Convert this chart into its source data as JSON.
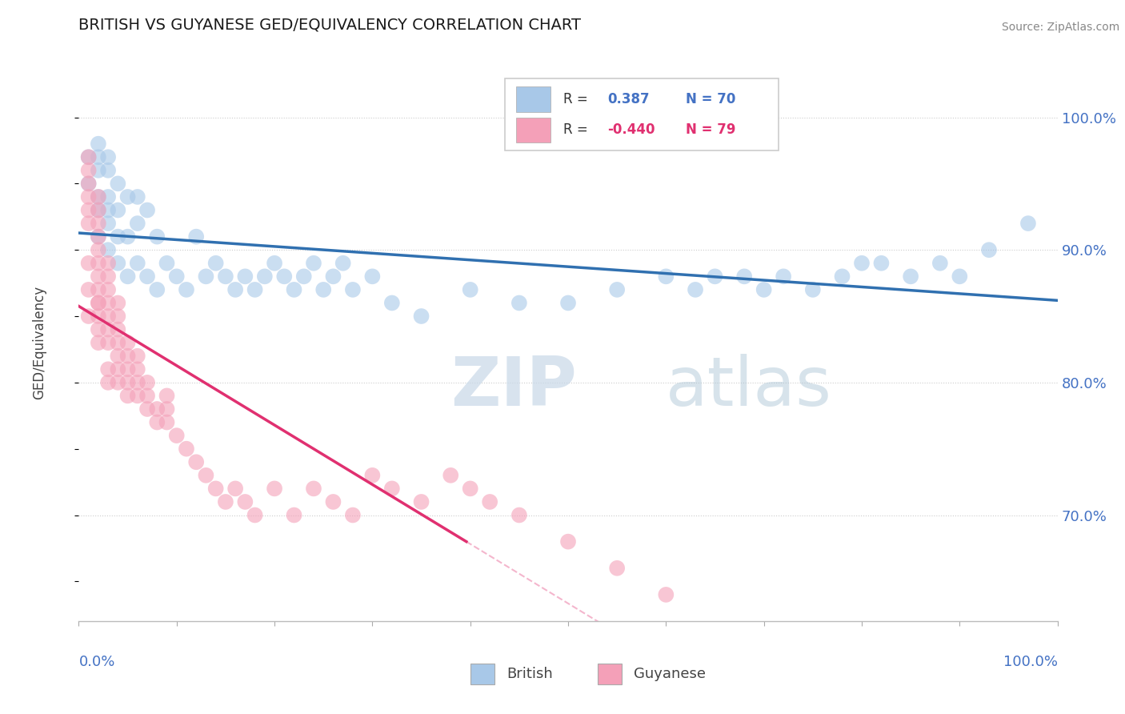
{
  "title": "BRITISH VS GUYANESE GED/EQUIVALENCY CORRELATION CHART",
  "source": "Source: ZipAtlas.com",
  "ylabel": "GED/Equivalency",
  "yticks": [
    0.7,
    0.8,
    0.9,
    1.0
  ],
  "ytick_labels": [
    "70.0%",
    "80.0%",
    "90.0%",
    "100.0%"
  ],
  "watermark_zip": "ZIP",
  "watermark_atlas": "atlas",
  "legend_r_label": "R = ",
  "legend_british_r_val": "0.387",
  "legend_british_n": "N = 70",
  "legend_guyanese_r_val": "-0.440",
  "legend_guyanese_n": "N = 79",
  "blue_scatter_color": "#a8c8e8",
  "pink_scatter_color": "#f4a0b8",
  "blue_line_color": "#3070b0",
  "pink_line_color": "#e03070",
  "axis_color": "#4472c4",
  "title_color": "#1a1a1a",
  "british_x": [
    0.01,
    0.01,
    0.02,
    0.02,
    0.02,
    0.02,
    0.02,
    0.02,
    0.03,
    0.03,
    0.03,
    0.03,
    0.03,
    0.03,
    0.04,
    0.04,
    0.04,
    0.04,
    0.05,
    0.05,
    0.05,
    0.06,
    0.06,
    0.06,
    0.07,
    0.07,
    0.08,
    0.08,
    0.09,
    0.1,
    0.11,
    0.12,
    0.13,
    0.14,
    0.15,
    0.16,
    0.17,
    0.18,
    0.19,
    0.2,
    0.21,
    0.22,
    0.23,
    0.24,
    0.25,
    0.26,
    0.27,
    0.28,
    0.3,
    0.32,
    0.35,
    0.4,
    0.45,
    0.5,
    0.55,
    0.6,
    0.63,
    0.65,
    0.68,
    0.7,
    0.72,
    0.75,
    0.78,
    0.8,
    0.82,
    0.85,
    0.88,
    0.9,
    0.93,
    0.97
  ],
  "british_y": [
    0.95,
    0.97,
    0.91,
    0.93,
    0.94,
    0.96,
    0.97,
    0.98,
    0.9,
    0.92,
    0.93,
    0.94,
    0.96,
    0.97,
    0.89,
    0.91,
    0.93,
    0.95,
    0.88,
    0.91,
    0.94,
    0.89,
    0.92,
    0.94,
    0.88,
    0.93,
    0.87,
    0.91,
    0.89,
    0.88,
    0.87,
    0.91,
    0.88,
    0.89,
    0.88,
    0.87,
    0.88,
    0.87,
    0.88,
    0.89,
    0.88,
    0.87,
    0.88,
    0.89,
    0.87,
    0.88,
    0.89,
    0.87,
    0.88,
    0.86,
    0.85,
    0.87,
    0.86,
    0.86,
    0.87,
    0.88,
    0.87,
    0.88,
    0.88,
    0.87,
    0.88,
    0.87,
    0.88,
    0.89,
    0.89,
    0.88,
    0.89,
    0.88,
    0.9,
    0.92
  ],
  "guyanese_x": [
    0.01,
    0.01,
    0.01,
    0.01,
    0.01,
    0.01,
    0.01,
    0.01,
    0.01,
    0.02,
    0.02,
    0.02,
    0.02,
    0.02,
    0.02,
    0.02,
    0.02,
    0.02,
    0.02,
    0.02,
    0.02,
    0.02,
    0.03,
    0.03,
    0.03,
    0.03,
    0.03,
    0.03,
    0.03,
    0.03,
    0.03,
    0.04,
    0.04,
    0.04,
    0.04,
    0.04,
    0.04,
    0.04,
    0.05,
    0.05,
    0.05,
    0.05,
    0.05,
    0.06,
    0.06,
    0.06,
    0.06,
    0.07,
    0.07,
    0.07,
    0.08,
    0.08,
    0.09,
    0.09,
    0.09,
    0.1,
    0.11,
    0.12,
    0.13,
    0.14,
    0.15,
    0.16,
    0.17,
    0.18,
    0.2,
    0.22,
    0.24,
    0.26,
    0.28,
    0.3,
    0.32,
    0.35,
    0.38,
    0.4,
    0.42,
    0.45,
    0.5,
    0.55,
    0.6
  ],
  "guyanese_y": [
    0.92,
    0.93,
    0.94,
    0.95,
    0.96,
    0.97,
    0.85,
    0.87,
    0.89,
    0.86,
    0.87,
    0.88,
    0.89,
    0.9,
    0.91,
    0.92,
    0.93,
    0.94,
    0.83,
    0.84,
    0.85,
    0.86,
    0.83,
    0.84,
    0.85,
    0.86,
    0.87,
    0.88,
    0.89,
    0.8,
    0.81,
    0.82,
    0.83,
    0.84,
    0.85,
    0.86,
    0.8,
    0.81,
    0.79,
    0.8,
    0.81,
    0.82,
    0.83,
    0.79,
    0.8,
    0.81,
    0.82,
    0.78,
    0.79,
    0.8,
    0.77,
    0.78,
    0.77,
    0.78,
    0.79,
    0.76,
    0.75,
    0.74,
    0.73,
    0.72,
    0.71,
    0.72,
    0.71,
    0.7,
    0.72,
    0.7,
    0.72,
    0.71,
    0.7,
    0.73,
    0.72,
    0.71,
    0.73,
    0.72,
    0.71,
    0.7,
    0.68,
    0.66,
    0.64
  ]
}
